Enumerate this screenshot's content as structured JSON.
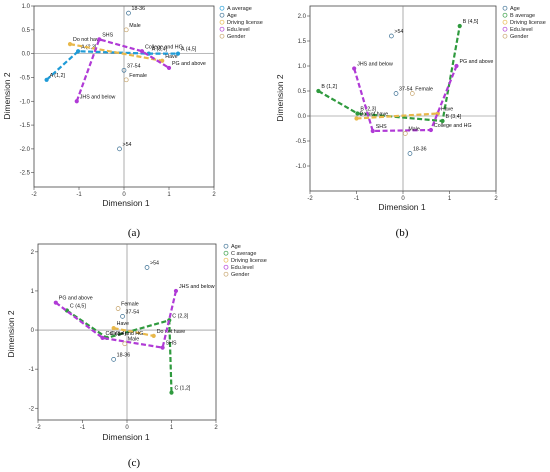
{
  "chart_data": [
    {
      "type": "scatter",
      "caption": "(a)",
      "xlabel": "Dimension 1",
      "ylabel": "Dimension 2",
      "xlim": [
        -2,
        2
      ],
      "ylim": [
        -2.8,
        1.0
      ],
      "xticks": [
        -2,
        -1,
        0,
        1,
        2
      ],
      "yticks": [
        1.0,
        0.5,
        0.0,
        -0.5,
        -1.0,
        -1.5,
        -2.0,
        -2.5
      ],
      "legend": [
        "A average",
        "Age",
        "Driving license",
        "Edu.level",
        "Gender"
      ],
      "legend_position": "top-right",
      "colors": {
        "primary": "#1f9bd7",
        "age": "#3a6f93",
        "driving_license": "#e8b84a",
        "edu_level": "#b03ad6",
        "gender": "#c5a36a"
      },
      "series": [
        {
          "name": "A average",
          "points": [
            {
              "label": "A (1,2]",
              "x": -1.72,
              "y": -0.55
            },
            {
              "label": "A (2,3]",
              "x": -1.02,
              "y": 0.05
            },
            {
              "label": "A (3,4]",
              "x": 0.55,
              "y": 0.0
            },
            {
              "label": "A (4,5]",
              "x": 1.2,
              "y": 0.0
            }
          ]
        },
        {
          "name": "Age",
          "points": [
            {
              "label": "18-36",
              "x": 0.1,
              "y": 0.85
            },
            {
              "label": "37-54",
              "x": 0.0,
              "y": -0.35
            },
            {
              "label": ">54",
              "x": -0.1,
              "y": -2.0
            }
          ]
        },
        {
          "name": "Driving license",
          "points": [
            {
              "label": "Do not have",
              "x": -1.2,
              "y": 0.2
            },
            {
              "label": "Have",
              "x": 0.85,
              "y": -0.15
            }
          ]
        },
        {
          "name": "Edu.level",
          "points": [
            {
              "label": "JHS and below",
              "x": -1.05,
              "y": -1.0
            },
            {
              "label": "SHS",
              "x": -0.55,
              "y": 0.3
            },
            {
              "label": "College and HG",
              "x": 0.4,
              "y": 0.05
            },
            {
              "label": "PG and above",
              "x": 1.0,
              "y": -0.3
            }
          ]
        },
        {
          "name": "Gender",
          "points": [
            {
              "label": "Male",
              "x": 0.05,
              "y": 0.5
            },
            {
              "label": "Female",
              "x": 0.05,
              "y": -0.55
            }
          ]
        }
      ]
    },
    {
      "type": "scatter",
      "caption": "(b)",
      "xlabel": "Dimension 1",
      "ylabel": "Dimension 2",
      "xlim": [
        -2,
        2
      ],
      "ylim": [
        -1.5,
        2.2
      ],
      "xticks": [
        -2,
        -1,
        0,
        1,
        2
      ],
      "yticks": [
        2.0,
        1.5,
        1.0,
        0.5,
        0.0,
        -0.5,
        -1.0
      ],
      "legend": [
        "Age",
        "B average",
        "Driving license",
        "Edu.level",
        "Gender"
      ],
      "legend_position": "top-right",
      "colors": {
        "primary": "#2f9a3e",
        "age": "#3a6f93",
        "driving_license": "#e8b84a",
        "edu_level": "#b03ad6",
        "gender": "#c5a36a"
      },
      "series": [
        {
          "name": "B average",
          "points": [
            {
              "label": "B (1,2]",
              "x": -1.82,
              "y": 0.5
            },
            {
              "label": "B (2,3]",
              "x": -0.98,
              "y": 0.05
            },
            {
              "label": "B (3,4]",
              "x": 0.85,
              "y": -0.1
            },
            {
              "label": "B (4,5]",
              "x": 1.22,
              "y": 1.8
            }
          ]
        },
        {
          "name": "Age",
          "points": [
            {
              "label": ">54",
              "x": -0.25,
              "y": 1.6
            },
            {
              "label": "37-54",
              "x": -0.15,
              "y": 0.45
            },
            {
              "label": "18-36",
              "x": 0.15,
              "y": -0.75
            }
          ]
        },
        {
          "name": "Driving license",
          "points": [
            {
              "label": "Do not have",
              "x": -1.0,
              "y": -0.05
            },
            {
              "label": "Have",
              "x": 0.75,
              "y": 0.05
            }
          ]
        },
        {
          "name": "Edu.level",
          "points": [
            {
              "label": "JHS and below",
              "x": -1.05,
              "y": 0.95
            },
            {
              "label": "SHS",
              "x": -0.65,
              "y": -0.3
            },
            {
              "label": "College and HG",
              "x": 0.6,
              "y": -0.28
            },
            {
              "label": "PG and above",
              "x": 1.15,
              "y": 1.0
            }
          ]
        },
        {
          "name": "Gender",
          "points": [
            {
              "label": "Female",
              "x": 0.2,
              "y": 0.45
            },
            {
              "label": "Male",
              "x": 0.05,
              "y": -0.35
            }
          ]
        }
      ]
    },
    {
      "type": "scatter",
      "caption": "(c)",
      "xlabel": "Dimension 1",
      "ylabel": "Dimension 2",
      "xlim": [
        -2,
        2
      ],
      "ylim": [
        -2.3,
        2.2
      ],
      "xticks": [
        -2,
        -1,
        0,
        1,
        2
      ],
      "yticks": [
        2,
        1,
        0,
        -1,
        -2
      ],
      "legend": [
        "Age",
        "C average",
        "Driving license",
        "Edu.level",
        "Gender"
      ],
      "legend_position": "top-right",
      "colors": {
        "primary": "#2f9a3e",
        "age": "#3a6f93",
        "driving_license": "#e8b84a",
        "edu_level": "#b03ad6",
        "gender": "#c5a36a"
      },
      "series": [
        {
          "name": "C average",
          "points": [
            {
              "label": "C (4,5]",
              "x": -1.35,
              "y": 0.5
            },
            {
              "label": "C (3,4]",
              "x": -0.45,
              "y": -0.2
            },
            {
              "label": "C (2,3]",
              "x": 0.95,
              "y": 0.25
            },
            {
              "label": "C (1,2]",
              "x": 1.0,
              "y": -1.6
            }
          ]
        },
        {
          "name": "Age",
          "points": [
            {
              "label": ">54",
              "x": 0.45,
              "y": 1.6
            },
            {
              "label": "37-54",
              "x": -0.1,
              "y": 0.35
            },
            {
              "label": "18-36",
              "x": -0.3,
              "y": -0.75
            }
          ]
        },
        {
          "name": "Driving license",
          "points": [
            {
              "label": "Have",
              "x": -0.3,
              "y": 0.05
            },
            {
              "label": "Do not have",
              "x": 0.6,
              "y": -0.15
            }
          ]
        },
        {
          "name": "Edu.level",
          "points": [
            {
              "label": "PG and above",
              "x": -1.6,
              "y": 0.7
            },
            {
              "label": "College and HG",
              "x": -0.55,
              "y": -0.2
            },
            {
              "label": "SHS",
              "x": 0.8,
              "y": -0.45
            },
            {
              "label": "JHS and below",
              "x": 1.1,
              "y": 1.0
            }
          ]
        },
        {
          "name": "Gender",
          "points": [
            {
              "label": "Female",
              "x": -0.2,
              "y": 0.55
            },
            {
              "label": "Male",
              "x": -0.05,
              "y": -0.35
            }
          ]
        }
      ]
    }
  ]
}
